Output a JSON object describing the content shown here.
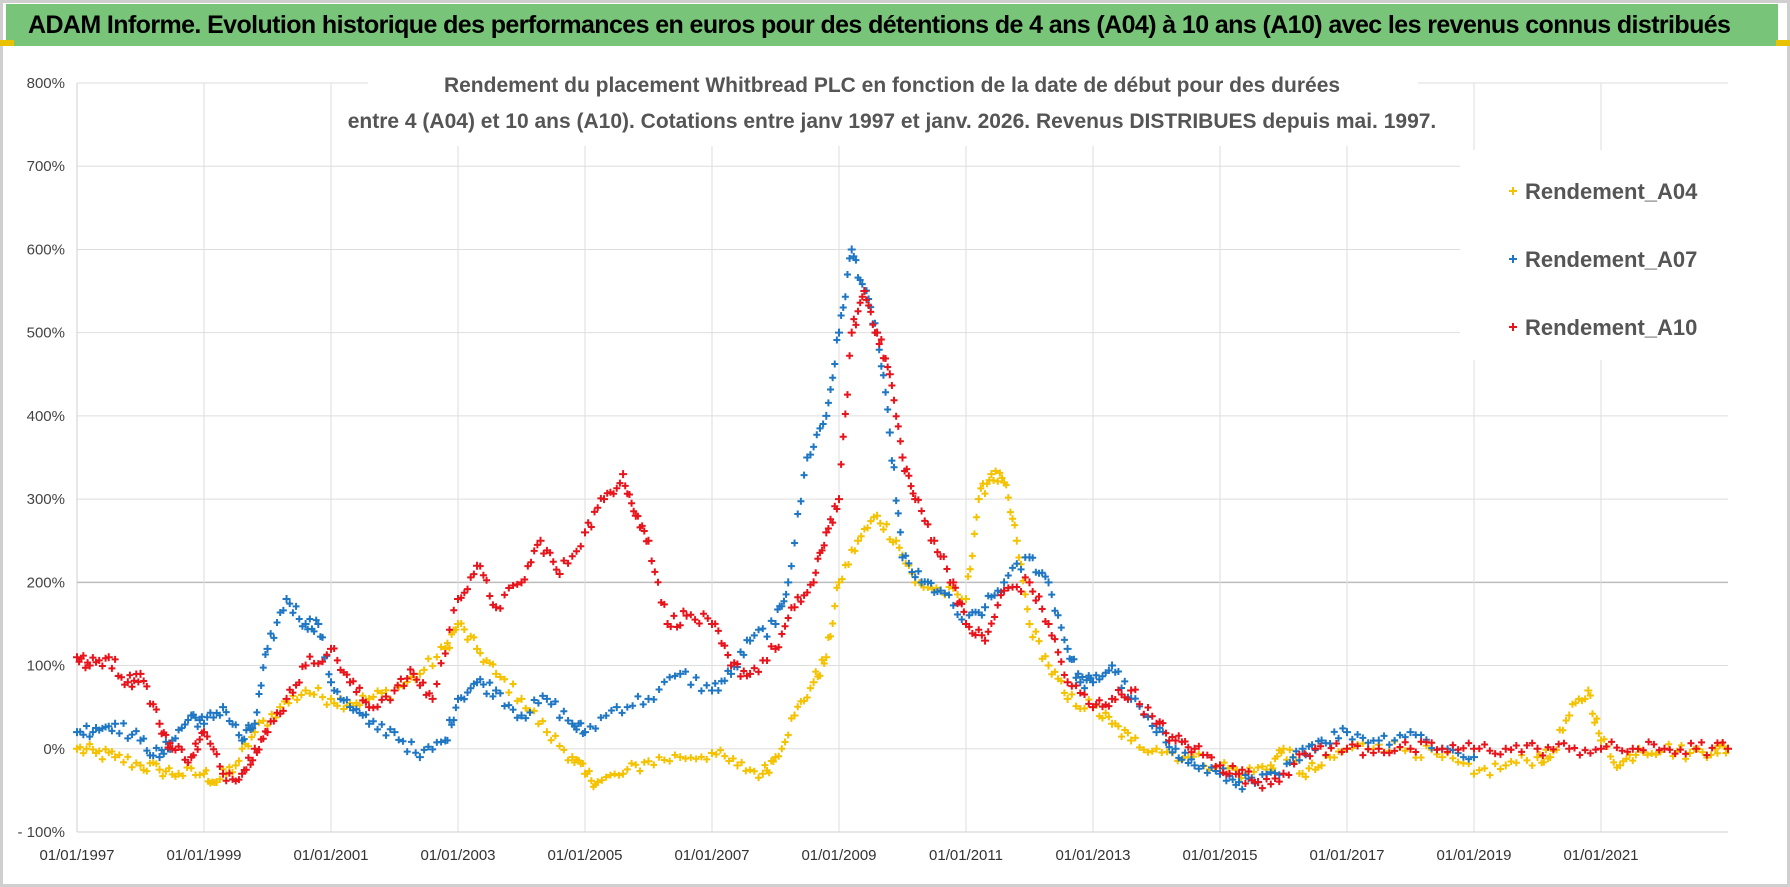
{
  "banner": {
    "title": "ADAM Informe. Evolution historique des performances en euros pour des détentions de 4 ans (A04) à 10 ans (A10) avec les revenus connus distribués"
  },
  "chart_data": {
    "type": "scatter",
    "title_lines": [
      "Rendement du placement Whitbread PLC en fonction de la date de début pour des durées",
      "entre 4 (A04) et 10 ans (A10).  Cotations entre janv 1997 et janv. 2026. Revenus DISTRIBUES depuis mai. 1997."
    ],
    "xlabel": "",
    "ylabel": "",
    "xlim": [
      1997.0,
      2023.0
    ],
    "ylim": [
      -100,
      800
    ],
    "grid": true,
    "legend_position": "top-right",
    "y_ticks": [
      -100,
      0,
      100,
      200,
      300,
      400,
      500,
      600,
      700,
      800
    ],
    "y_tick_labels": [
      "- 100%",
      "0%",
      "100%",
      "200%",
      "300%",
      "400%",
      "500%",
      "600%",
      "700%",
      "800%"
    ],
    "x_ticks": [
      1997,
      1999,
      2001,
      2003,
      2005,
      2007,
      2009,
      2011,
      2013,
      2015,
      2017,
      2019,
      2021
    ],
    "x_tick_labels": [
      "01/01/1997",
      "01/01/1999",
      "01/01/2001",
      "01/01/2003",
      "01/01/2005",
      "01/01/2007",
      "01/01/2009",
      "01/01/2011",
      "01/01/2013",
      "01/01/2015",
      "01/01/2017",
      "01/01/2019",
      "01/01/2021"
    ],
    "series": [
      {
        "name": "Rendement_A04",
        "color": "#f5c200",
        "x": [
          1997.0,
          1997.3,
          1997.6,
          1998.0,
          1998.3,
          1998.6,
          1999.0,
          1999.2,
          1999.5,
          1999.8,
          2000.2,
          2000.6,
          2001.0,
          2001.3,
          2001.6,
          2002.0,
          2002.4,
          2002.8,
          2003.0,
          2003.3,
          2003.6,
          2004.0,
          2004.4,
          2004.8,
          2005.0,
          2005.2,
          2005.6,
          2006.0,
          2006.5,
          2007.0,
          2007.4,
          2007.8,
          2008.0,
          2008.3,
          2008.6,
          2008.8,
          2009.0,
          2009.3,
          2009.6,
          2009.9,
          2010.2,
          2010.6,
          2011.0,
          2011.2,
          2011.4,
          2011.6,
          2011.8,
          2012.0,
          2012.3,
          2012.6,
          2013.0,
          2013.3,
          2013.6,
          2014.0,
          2014.5,
          2015.0,
          2015.4,
          2015.8,
          2016.0,
          2016.3,
          2016.6,
          2017.0,
          2017.5,
          2018.0,
          2018.5,
          2019.0,
          2019.5,
          2020.0,
          2020.2,
          2020.5,
          2020.8,
          2021.0,
          2021.3,
          2021.6,
          2022.0,
          2022.4,
          2022.8,
          2023.0
        ],
        "y": [
          0,
          -5,
          -10,
          -20,
          -25,
          -30,
          -30,
          -40,
          -20,
          20,
          50,
          70,
          60,
          55,
          60,
          70,
          90,
          120,
          150,
          120,
          90,
          60,
          20,
          -10,
          -30,
          -40,
          -30,
          -15,
          -10,
          -5,
          -20,
          -30,
          -10,
          40,
          80,
          110,
          200,
          250,
          280,
          250,
          200,
          190,
          180,
          300,
          330,
          320,
          250,
          150,
          100,
          60,
          50,
          30,
          10,
          0,
          -10,
          -20,
          -30,
          -20,
          0,
          -30,
          -20,
          0,
          5,
          0,
          -10,
          -30,
          -20,
          -10,
          -10,
          40,
          70,
          10,
          -20,
          0,
          0,
          -5,
          0,
          0
        ]
      },
      {
        "name": "Rendement_A07",
        "color": "#1f77c4",
        "x": [
          1997.0,
          1997.3,
          1997.6,
          1998.0,
          1998.3,
          1998.5,
          1998.8,
          1999.0,
          1999.3,
          1999.6,
          1999.8,
          2000.0,
          2000.3,
          2000.6,
          2000.8,
          2001.0,
          2001.3,
          2001.6,
          2002.0,
          2002.4,
          2002.8,
          2003.0,
          2003.3,
          2003.6,
          2004.0,
          2004.4,
          2004.8,
          2005.0,
          2005.5,
          2006.0,
          2006.5,
          2007.0,
          2007.3,
          2007.6,
          2008.0,
          2008.2,
          2008.5,
          2008.8,
          2009.0,
          2009.2,
          2009.4,
          2009.6,
          2009.8,
          2010.0,
          2010.3,
          2010.6,
          2011.0,
          2011.3,
          2011.6,
          2012.0,
          2012.3,
          2012.6,
          2012.8,
          2013.0,
          2013.3,
          2013.6,
          2014.0,
          2014.3,
          2014.6,
          2015.0,
          2015.3,
          2015.6,
          2016.0,
          2016.3,
          2016.6,
          2017.0,
          2017.5,
          2018.0,
          2018.5,
          2019.0
        ],
        "y": [
          20,
          25,
          30,
          10,
          -10,
          10,
          40,
          30,
          50,
          10,
          30,
          120,
          180,
          150,
          150,
          80,
          50,
          30,
          20,
          -10,
          10,
          60,
          80,
          70,
          40,
          60,
          30,
          20,
          50,
          60,
          90,
          70,
          90,
          130,
          150,
          200,
          350,
          400,
          500,
          600,
          550,
          500,
          380,
          230,
          200,
          190,
          150,
          170,
          200,
          230,
          200,
          120,
          80,
          80,
          100,
          60,
          20,
          0,
          -20,
          -30,
          -40,
          -40,
          -30,
          0,
          10,
          20,
          10,
          20,
          0,
          -10
        ]
      },
      {
        "name": "Rendement_A10",
        "color": "#e8141c",
        "x": [
          1997.0,
          1997.2,
          1997.5,
          1997.8,
          1998.0,
          1998.3,
          1998.5,
          1998.8,
          1999.0,
          1999.3,
          1999.6,
          1999.8,
          2000.0,
          2000.3,
          2000.6,
          2001.0,
          2001.3,
          2001.6,
          2002.0,
          2002.3,
          2002.6,
          2003.0,
          2003.3,
          2003.6,
          2004.0,
          2004.3,
          2004.6,
          2005.0,
          2005.3,
          2005.6,
          2005.8,
          2006.0,
          2006.3,
          2006.6,
          2007.0,
          2007.3,
          2007.6,
          2008.0,
          2008.3,
          2008.6,
          2008.8,
          2009.0,
          2009.2,
          2009.4,
          2009.6,
          2009.8,
          2010.0,
          2010.2,
          2010.5,
          2010.8,
          2011.0,
          2011.3,
          2011.6,
          2012.0,
          2012.3,
          2012.6,
          2013.0,
          2013.3,
          2013.6,
          2014.0,
          2014.3,
          2014.6,
          2015.0,
          2015.3,
          2015.6,
          2016.0,
          2016.5,
          2017.0,
          2017.5,
          2018.0,
          2018.5,
          2019.0,
          2019.5,
          2020.0,
          2020.5,
          2021.0,
          2021.5,
          2022.0,
          2022.5,
          2023.0
        ],
        "y": [
          110,
          100,
          110,
          80,
          90,
          30,
          0,
          -10,
          20,
          -30,
          -30,
          0,
          20,
          60,
          100,
          120,
          80,
          50,
          70,
          90,
          60,
          180,
          220,
          170,
          200,
          250,
          210,
          260,
          300,
          330,
          280,
          250,
          150,
          160,
          150,
          100,
          90,
          120,
          170,
          200,
          260,
          300,
          500,
          550,
          500,
          450,
          350,
          300,
          250,
          200,
          150,
          130,
          190,
          200,
          150,
          80,
          50,
          60,
          70,
          30,
          10,
          0,
          -20,
          -30,
          -40,
          -30,
          0,
          0,
          0,
          0,
          0,
          0,
          0,
          0,
          0,
          0,
          0,
          0,
          0,
          0
        ]
      }
    ]
  }
}
